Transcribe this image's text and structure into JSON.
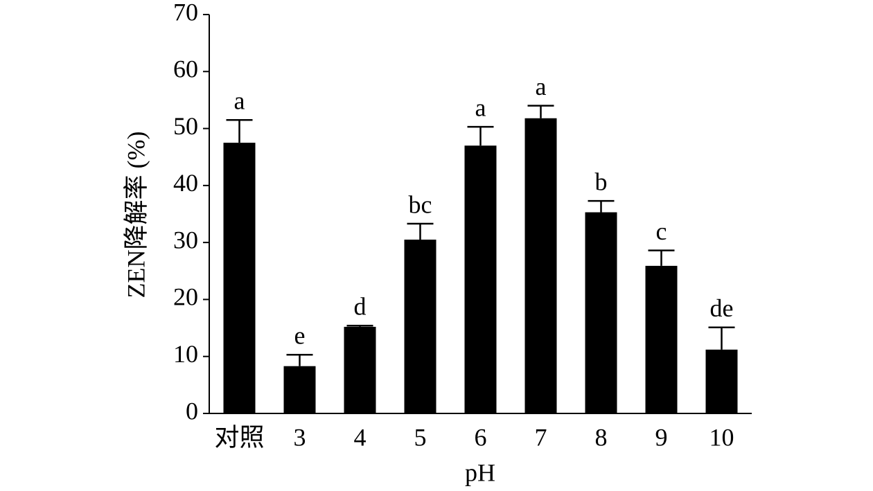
{
  "chart_data": {
    "type": "bar",
    "x_label": "pH",
    "y_label": "ZEN降解率 (%)",
    "categories": [
      "对照",
      "3",
      "4",
      "5",
      "6",
      "7",
      "8",
      "9",
      "10"
    ],
    "values": [
      47.5,
      8.3,
      15.2,
      30.5,
      47,
      51.8,
      35.3,
      25.9,
      11.2
    ],
    "errors": [
      4,
      2,
      0.2,
      2.8,
      3.3,
      2.2,
      2,
      2.7,
      3.9
    ],
    "letters": [
      "a",
      "e",
      "d",
      "bc",
      "a",
      "a",
      "b",
      "c",
      "de"
    ],
    "color": "#000000",
    "ylim": [
      0,
      70
    ],
    "yticks": [
      0,
      10,
      20,
      30,
      40,
      50,
      60,
      70
    ],
    "grid": false
  }
}
